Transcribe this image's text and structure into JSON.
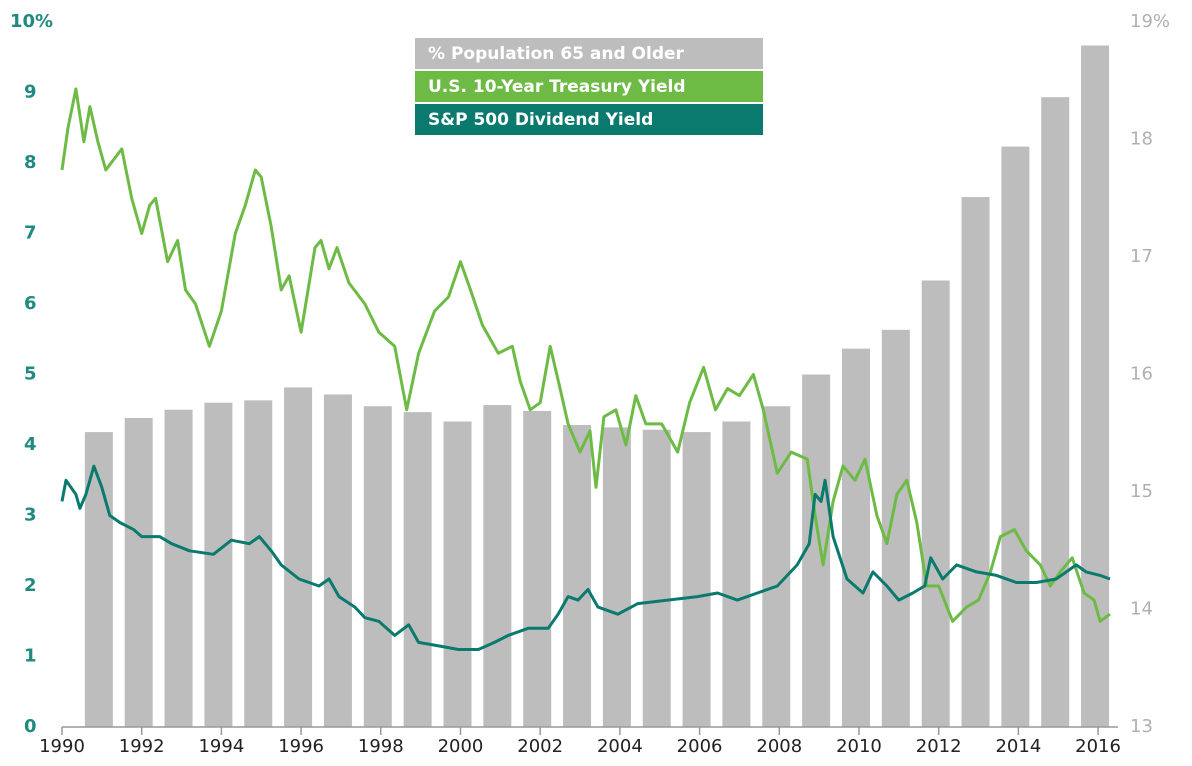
{
  "chart_data": {
    "type": "combo",
    "xlim": [
      1990,
      2016.5
    ],
    "xticks": [
      1990,
      1992,
      1994,
      1996,
      1998,
      2000,
      2002,
      2004,
      2006,
      2008,
      2010,
      2012,
      2014,
      2016
    ],
    "ylim": [
      0,
      10
    ],
    "yticks": [
      0,
      1,
      2,
      3,
      4,
      5,
      6,
      7,
      8,
      9,
      {
        "value": 10,
        "label": "10%"
      }
    ],
    "y2lim": [
      13,
      19
    ],
    "y2ticks": [
      13,
      14,
      15,
      16,
      17,
      18,
      {
        "value": 19,
        "label": "19%"
      }
    ],
    "series": [
      {
        "name": "% Population 65 and Older",
        "color": "#bdbdbd",
        "type": "bar",
        "axis": "y2",
        "x": [
          1991,
          1992,
          1993,
          1994,
          1995,
          1996,
          1997,
          1998,
          1999,
          2000,
          2001,
          2002,
          2003,
          2004,
          2005,
          2006,
          2007,
          2008,
          2009,
          2010,
          2011,
          2012,
          2013,
          2014,
          2015,
          2016
        ],
        "values": [
          15.51,
          15.63,
          15.7,
          15.76,
          15.78,
          15.89,
          15.83,
          15.73,
          15.68,
          15.6,
          15.74,
          15.69,
          15.57,
          15.55,
          15.53,
          15.51,
          15.6,
          15.73,
          16.0,
          16.22,
          16.38,
          16.8,
          17.51,
          17.94,
          18.36,
          18.8
        ]
      },
      {
        "name": "U.S. 10-Year Treasury Yield",
        "color": "#6dbb45",
        "type": "line",
        "x": [
          1990.0,
          1990.15,
          1990.35,
          1990.55,
          1990.7,
          1990.9,
          1991.1,
          1991.5,
          1991.75,
          1992.0,
          1992.2,
          1992.35,
          1992.65,
          1992.9,
          1993.1,
          1993.35,
          1993.7,
          1994.0,
          1994.35,
          1994.6,
          1994.85,
          1995.0,
          1995.25,
          1995.5,
          1995.7,
          1996.0,
          1996.35,
          1996.5,
          1996.7,
          1996.9,
          1997.2,
          1997.6,
          1997.95,
          1998.35,
          1998.65,
          1998.95,
          1999.35,
          1999.7,
          2000.0,
          2000.25,
          2000.55,
          2000.95,
          2001.3,
          2001.5,
          2001.75,
          2002.0,
          2002.25,
          2002.5,
          2002.7,
          2003.0,
          2003.25,
          2003.4,
          2003.6,
          2003.9,
          2004.15,
          2004.4,
          2004.65,
          2005.05,
          2005.45,
          2005.75,
          2006.1,
          2006.4,
          2006.7,
          2007.0,
          2007.35,
          2007.6,
          2007.95,
          2008.3,
          2008.7,
          2008.9,
          2009.1,
          2009.35,
          2009.6,
          2009.9,
          2010.15,
          2010.45,
          2010.7,
          2010.95,
          2011.2,
          2011.45,
          2011.7,
          2012.0,
          2012.35,
          2012.7,
          2013.0,
          2013.3,
          2013.55,
          2013.9,
          2014.2,
          2014.55,
          2014.8,
          2015.05,
          2015.35,
          2015.65,
          2015.9,
          2016.05,
          2016.3
        ],
        "values": [
          7.9,
          8.5,
          9.05,
          8.3,
          8.8,
          8.3,
          7.9,
          8.2,
          7.5,
          7.0,
          7.4,
          7.5,
          6.6,
          6.9,
          6.2,
          6.0,
          5.4,
          5.9,
          7.0,
          7.4,
          7.9,
          7.8,
          7.1,
          6.2,
          6.4,
          5.6,
          6.8,
          6.9,
          6.5,
          6.8,
          6.3,
          6.0,
          5.6,
          5.4,
          4.5,
          5.3,
          5.9,
          6.1,
          6.6,
          6.2,
          5.7,
          5.3,
          5.4,
          4.9,
          4.5,
          4.6,
          5.4,
          4.8,
          4.3,
          3.9,
          4.2,
          3.4,
          4.4,
          4.5,
          4.0,
          4.7,
          4.3,
          4.3,
          3.9,
          4.6,
          5.1,
          4.5,
          4.8,
          4.7,
          5.0,
          4.5,
          3.6,
          3.9,
          3.8,
          3.0,
          2.3,
          3.2,
          3.7,
          3.5,
          3.8,
          3.0,
          2.6,
          3.3,
          3.5,
          2.9,
          2.0,
          2.0,
          1.5,
          1.7,
          1.8,
          2.2,
          2.7,
          2.8,
          2.5,
          2.3,
          2.0,
          2.2,
          2.4,
          1.9,
          1.8,
          1.5,
          1.6
        ]
      },
      {
        "name": "S&P 500 Dividend Yield",
        "color": "#0a7a6e",
        "type": "line",
        "x": [
          1990.0,
          1990.1,
          1990.35,
          1990.45,
          1990.6,
          1990.8,
          1991.0,
          1991.2,
          1991.45,
          1991.8,
          1992.0,
          1992.45,
          1992.75,
          1993.2,
          1993.8,
          1994.25,
          1994.7,
          1994.95,
          1995.25,
          1995.5,
          1995.95,
          1996.45,
          1996.7,
          1996.95,
          1997.35,
          1997.6,
          1997.95,
          1998.35,
          1998.7,
          1998.95,
          1999.45,
          1999.95,
          2000.45,
          2000.85,
          2001.2,
          2001.7,
          2002.2,
          2002.45,
          2002.7,
          2002.95,
          2003.2,
          2003.45,
          2003.95,
          2004.45,
          2005.2,
          2005.95,
          2006.45,
          2006.95,
          2007.45,
          2007.95,
          2008.45,
          2008.75,
          2008.9,
          2009.05,
          2009.15,
          2009.35,
          2009.7,
          2010.1,
          2010.35,
          2010.7,
          2011.0,
          2011.35,
          2011.65,
          2011.8,
          2012.1,
          2012.45,
          2012.95,
          2013.45,
          2013.95,
          2014.45,
          2014.95,
          2015.45,
          2015.7,
          2016.05,
          2016.3
        ],
        "values": [
          3.2,
          3.5,
          3.3,
          3.1,
          3.3,
          3.7,
          3.4,
          3.0,
          2.9,
          2.8,
          2.7,
          2.7,
          2.6,
          2.5,
          2.45,
          2.65,
          2.6,
          2.7,
          2.5,
          2.3,
          2.1,
          2.0,
          2.1,
          1.85,
          1.7,
          1.55,
          1.5,
          1.3,
          1.45,
          1.2,
          1.15,
          1.1,
          1.1,
          1.2,
          1.3,
          1.4,
          1.4,
          1.6,
          1.85,
          1.8,
          1.95,
          1.7,
          1.6,
          1.75,
          1.8,
          1.85,
          1.9,
          1.8,
          1.9,
          2.0,
          2.3,
          2.6,
          3.3,
          3.2,
          3.5,
          2.7,
          2.1,
          1.9,
          2.2,
          2.0,
          1.8,
          1.9,
          2.0,
          2.4,
          2.1,
          2.3,
          2.2,
          2.15,
          2.05,
          2.05,
          2.1,
          2.3,
          2.2,
          2.15,
          2.1
        ]
      }
    ],
    "legend": "top-center",
    "left_tick_color": "#1f8a7f",
    "right_tick_color": "#b0b0b0"
  }
}
